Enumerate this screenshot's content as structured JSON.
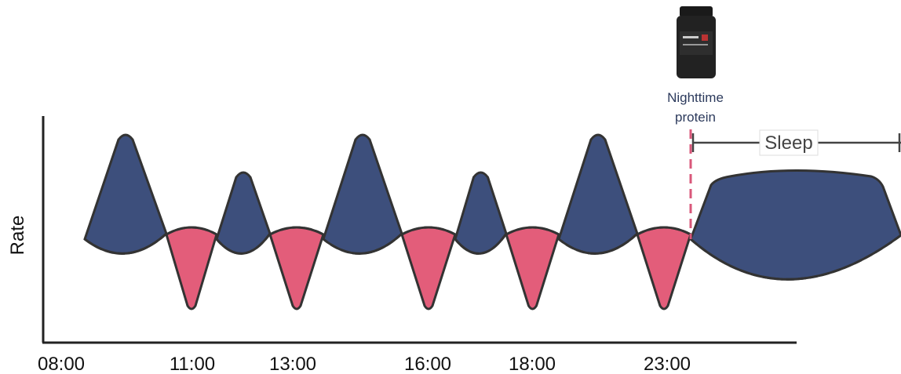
{
  "y_axis_label": "Rate",
  "x_labels": [
    "08:00",
    "11:00",
    "13:00",
    "16:00",
    "18:00",
    "23:00"
  ],
  "annotation": "Nighttime protein",
  "sleep_label": "Sleep"
}
